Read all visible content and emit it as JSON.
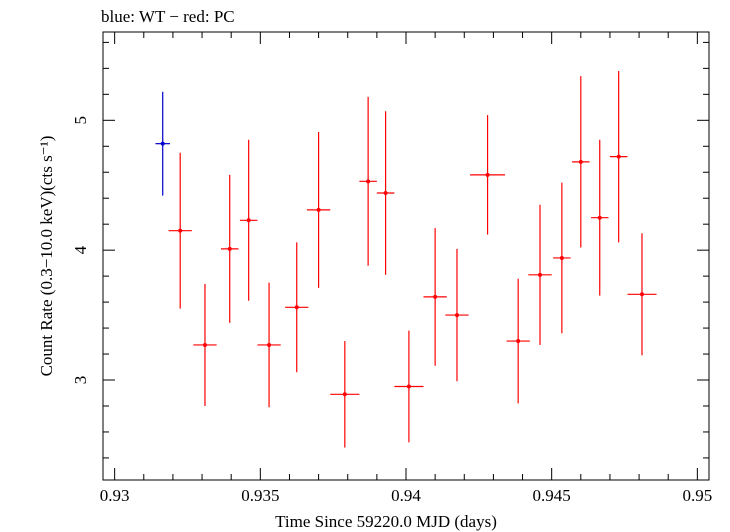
{
  "chart_data": {
    "type": "scatter",
    "title": "blue: WT − red: PC",
    "xlabel": "Time Since 59220.0 MJD (days)",
    "ylabel": "Count Rate (0.3−10.0 keV)(cts s⁻¹)",
    "xlim": [
      0.9296,
      0.9504
    ],
    "ylim": [
      2.23,
      5.68
    ],
    "x_ticks": [
      0.93,
      0.935,
      0.94,
      0.945,
      0.95
    ],
    "x_tick_labels": [
      "0.93",
      "0.935",
      "0.94",
      "0.945",
      "0.95"
    ],
    "y_ticks": [
      3,
      4,
      5
    ],
    "y_tick_labels": [
      "3",
      "4",
      "5"
    ],
    "grid": false,
    "series": [
      {
        "name": "WT",
        "color": "#0000cc",
        "points": [
          {
            "x": 0.93165,
            "y": 4.82,
            "xerr": 0.00025,
            "yerr": 0.4
          }
        ]
      },
      {
        "name": "PC",
        "color": "#ff0000",
        "points": [
          {
            "x": 0.93225,
            "y": 4.15,
            "xerr": 0.0004,
            "yerr": 0.6
          },
          {
            "x": 0.9331,
            "y": 3.27,
            "xerr": 0.0004,
            "yerr": 0.47
          },
          {
            "x": 0.93395,
            "y": 4.01,
            "xerr": 0.0003,
            "yerr": 0.57
          },
          {
            "x": 0.9346,
            "y": 4.23,
            "xerr": 0.0003,
            "yerr": 0.62
          },
          {
            "x": 0.9353,
            "y": 3.27,
            "xerr": 0.0004,
            "yerr": 0.48
          },
          {
            "x": 0.93625,
            "y": 3.56,
            "xerr": 0.0004,
            "yerr": 0.5
          },
          {
            "x": 0.937,
            "y": 4.31,
            "xerr": 0.0004,
            "yerr": 0.6
          },
          {
            "x": 0.9379,
            "y": 2.89,
            "xerr": 0.0005,
            "yerr": 0.41
          },
          {
            "x": 0.9387,
            "y": 4.53,
            "xerr": 0.0003,
            "yerr": 0.65
          },
          {
            "x": 0.9393,
            "y": 4.44,
            "xerr": 0.0003,
            "yerr": 0.63
          },
          {
            "x": 0.9401,
            "y": 2.95,
            "xerr": 0.0005,
            "yerr": 0.43
          },
          {
            "x": 0.941,
            "y": 3.64,
            "xerr": 0.0004,
            "yerr": 0.53
          },
          {
            "x": 0.94175,
            "y": 3.5,
            "xerr": 0.0004,
            "yerr": 0.51
          },
          {
            "x": 0.9428,
            "y": 4.58,
            "xerr": 0.0006,
            "yerr": 0.46
          },
          {
            "x": 0.94385,
            "y": 3.3,
            "xerr": 0.0004,
            "yerr": 0.48
          },
          {
            "x": 0.9446,
            "y": 3.81,
            "xerr": 0.0004,
            "yerr": 0.54
          },
          {
            "x": 0.94535,
            "y": 3.94,
            "xerr": 0.0003,
            "yerr": 0.58
          },
          {
            "x": 0.946,
            "y": 4.68,
            "xerr": 0.0003,
            "yerr": 0.66
          },
          {
            "x": 0.94665,
            "y": 4.25,
            "xerr": 0.0003,
            "yerr": 0.6
          },
          {
            "x": 0.9473,
            "y": 4.72,
            "xerr": 0.0003,
            "yerr": 0.66
          },
          {
            "x": 0.9481,
            "y": 3.66,
            "xerr": 0.0005,
            "yerr": 0.47
          }
        ]
      }
    ]
  }
}
